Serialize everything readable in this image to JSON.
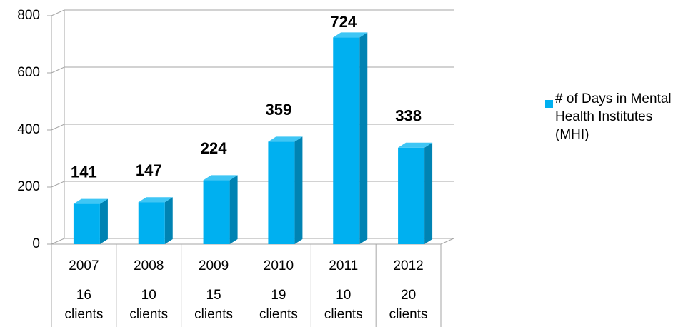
{
  "chart_data": {
    "type": "bar",
    "categories": [
      "2007",
      "2008",
      "2009",
      "2010",
      "2011",
      "2012"
    ],
    "category_notes": [
      "16 clients",
      "10 clients",
      "15 clients",
      "19 clients",
      "10 clients",
      "20 clients"
    ],
    "series": [
      {
        "name": "# of Days in Mental Health Institutes (MHI)",
        "color": "#00b0f0",
        "values": [
          141,
          147,
          224,
          359,
          724,
          338
        ]
      }
    ],
    "ylim": [
      0,
      800
    ],
    "yticks": [
      0,
      200,
      400,
      600,
      800
    ],
    "grid": true,
    "legend": "right"
  }
}
